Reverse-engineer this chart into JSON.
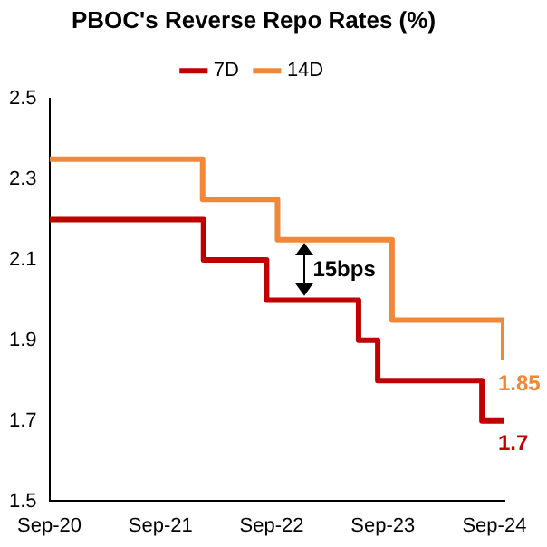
{
  "chart_data": {
    "type": "step",
    "title": "PBOC's Reverse Repo Rates (%)",
    "series": [
      {
        "name": "7D",
        "color": "#c00000",
        "x": [
          "2020-09-01",
          "2022-01-20",
          "2022-08-15",
          "2023-06-13",
          "2023-08-15",
          "2024-07-22",
          "2024-10-01"
        ],
        "values": [
          2.2,
          2.1,
          2.0,
          1.9,
          1.8,
          1.7,
          1.7
        ]
      },
      {
        "name": "14D",
        "color": "#f0883a",
        "x": [
          "2020-09-01",
          "2022-01-17",
          "2022-09-20",
          "2023-10-01",
          "2024-10-01"
        ],
        "values": [
          2.35,
          2.25,
          2.15,
          1.95,
          1.85
        ]
      }
    ],
    "xlim": [
      "2020-09-01",
      "2024-10-01"
    ],
    "xticks": [
      {
        "value": "2020-09-01",
        "label": "Sep-20"
      },
      {
        "value": "2021-09-01",
        "label": "Sep-21"
      },
      {
        "value": "2022-09-01",
        "label": "Sep-22"
      },
      {
        "value": "2023-09-01",
        "label": "Sep-23"
      },
      {
        "value": "2024-09-01",
        "label": "Sep-24"
      }
    ],
    "ylim": [
      1.5,
      2.5
    ],
    "yticks": [
      1.5,
      1.7,
      1.9,
      2.1,
      2.3,
      2.5
    ],
    "grid": false,
    "legend": "top",
    "line_style": "solid",
    "marker": "none",
    "annotations": [
      {
        "text": "15bps",
        "x": "2022-12-15",
        "y": 2.15
      },
      {
        "text": "1.85",
        "x": "2024-10-01",
        "y": 1.85
      },
      {
        "text": "1.7",
        "x": "2024-10-01",
        "y": 1.7
      }
    ]
  }
}
